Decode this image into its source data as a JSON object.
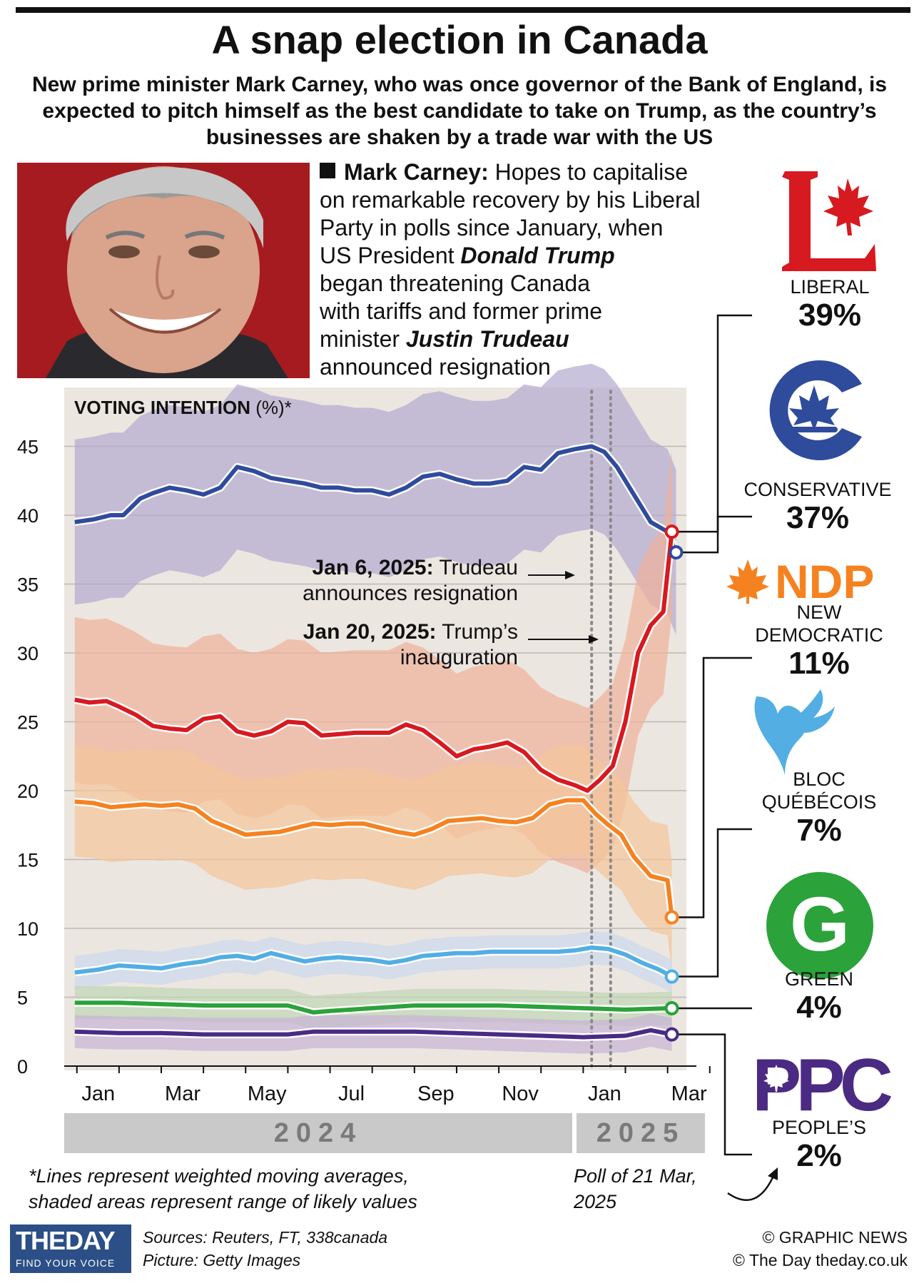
{
  "header": {
    "title": "A snap election in Canada",
    "subtitle": "New prime minister Mark Carney, who was once governor of the Bank of England, is expected to pitch himself as the best candidate to take on Trump, as the country’s businesses are shaken by a trade war with the US"
  },
  "description": {
    "name": "Mark Carney:",
    "line1_rest": " Hopes to capitalise",
    "line2": "on remarkable recovery by his Liberal",
    "line3": "Party in polls since January, when",
    "line4_pre": "US President ",
    "line4_em": "Donald Trump",
    "line5": "began threatening Canada",
    "line6": "with tariffs and former prime",
    "line7_pre": "minister ",
    "line7_em": "Justin Trudeau",
    "line8": "announced resignation"
  },
  "annotations": {
    "trudeau_date": "Jan 6, 2025:",
    "trudeau_text1": " Trudeau",
    "trudeau_text2": "announces resignation",
    "trump_date": "Jan 20, 2025:",
    "trump_text1": " Trump’s",
    "trump_text2": "inauguration"
  },
  "years": [
    "2024",
    "2025"
  ],
  "footnote": {
    "line1": "*Lines represent weighted moving averages,",
    "line2": "shaded areas represent range of likely values"
  },
  "poll_note": {
    "line1": "Poll of 21 Mar,",
    "line2": "2025"
  },
  "parties": [
    {
      "key": "liberal",
      "name_lines": [
        "LIBERAL"
      ],
      "pct": "39%",
      "color": "#d71920"
    },
    {
      "key": "conservative",
      "name_lines": [
        "CONSERVATIVE"
      ],
      "pct": "37%",
      "color": "#2f4b9c"
    },
    {
      "key": "ndp",
      "logo_text": "NDP",
      "name_lines": [
        "NEW",
        "DEMOCRATIC"
      ],
      "pct": "11%",
      "color": "#f58220"
    },
    {
      "key": "bloc",
      "name_lines": [
        "BLOC",
        "QUÉBÉCOIS"
      ],
      "pct": "7%",
      "color": "#52aee3"
    },
    {
      "key": "green",
      "logo_text": "G",
      "name_lines": [
        "GREEN"
      ],
      "pct": "4%",
      "color": "#2ba23a"
    },
    {
      "key": "ppc",
      "logo_text": "PPC",
      "name_lines": [
        "PEOPLE’S"
      ],
      "pct": "2%",
      "color": "#4b2a83"
    }
  ],
  "footer": {
    "brand_text": "THEDAY",
    "brand_tag": "FIND YOUR VOICE",
    "sources": "Sources: Reuters, FT, 338canada",
    "picture": "Picture: Getty Images",
    "copyright1": "© GRAPHIC NEWS",
    "copyright2": "© The Day   theday.co.uk"
  },
  "chart_data": {
    "type": "line",
    "title": "VOTING INTENTION",
    "title_suffix": " (%)*",
    "x_unit": "months since Jan 2024",
    "x_ticks": [
      "Jan",
      "Mar",
      "May",
      "Jul",
      "Sep",
      "Nov",
      "Jan",
      "Mar"
    ],
    "x_tick_values": [
      0,
      2,
      4,
      6,
      8,
      10,
      12,
      14
    ],
    "xlim": [
      -0.3,
      14.75
    ],
    "y_ticks": [
      0,
      5,
      10,
      15,
      20,
      25,
      30,
      35,
      40,
      45
    ],
    "ylim": [
      0,
      49
    ],
    "events": [
      {
        "label": "Jan 6, 2025",
        "x": 12.2
      },
      {
        "label": "Jan 20, 2025",
        "x": 12.65
      }
    ],
    "series": [
      {
        "key": "conservative",
        "color": "#2f4b9c",
        "band_color": "#b3a9cf",
        "band_width": 6,
        "x": [
          -0.05,
          0.4,
          0.8,
          1.1,
          1.5,
          1.8,
          2.2,
          2.6,
          3.0,
          3.4,
          3.8,
          4.2,
          4.6,
          5.0,
          5.4,
          5.8,
          6.2,
          6.6,
          7.0,
          7.4,
          7.8,
          8.2,
          8.6,
          9.0,
          9.4,
          9.8,
          10.2,
          10.6,
          11.0,
          11.4,
          11.8,
          12.2,
          12.5,
          12.8,
          13.2,
          13.6,
          14.0,
          14.2
        ],
        "y": [
          39.5,
          39.7,
          40.0,
          40.0,
          41.2,
          41.6,
          42.0,
          41.8,
          41.5,
          42.0,
          43.5,
          43.2,
          42.7,
          42.5,
          42.3,
          42.0,
          42.0,
          41.8,
          41.8,
          41.5,
          42.0,
          42.8,
          43.0,
          42.6,
          42.3,
          42.3,
          42.5,
          43.5,
          43.3,
          44.5,
          44.8,
          45.0,
          44.6,
          43.5,
          41.5,
          39.5,
          38.8,
          37.3
        ]
      },
      {
        "key": "liberal",
        "color": "#d71920",
        "band_color": "#f0b09a",
        "band_width": 6,
        "x": [
          -0.05,
          0.3,
          0.7,
          1.0,
          1.4,
          1.8,
          2.2,
          2.6,
          3.0,
          3.4,
          3.8,
          4.2,
          4.6,
          5.0,
          5.4,
          5.8,
          6.2,
          6.6,
          7.0,
          7.4,
          7.8,
          8.2,
          8.6,
          9.0,
          9.4,
          9.8,
          10.2,
          10.6,
          11.0,
          11.4,
          11.8,
          12.1,
          12.4,
          12.7,
          13.0,
          13.3,
          13.6,
          13.9,
          14.1
        ],
        "y": [
          26.6,
          26.4,
          26.5,
          26.1,
          25.5,
          24.7,
          24.5,
          24.4,
          25.2,
          25.4,
          24.3,
          24.0,
          24.3,
          25.0,
          24.9,
          24.0,
          24.1,
          24.2,
          24.2,
          24.2,
          24.8,
          24.4,
          23.5,
          22.5,
          23.0,
          23.2,
          23.5,
          22.8,
          21.5,
          20.8,
          20.4,
          20.0,
          20.8,
          21.8,
          25.0,
          30.0,
          32.0,
          33.0,
          38.8
        ]
      },
      {
        "key": "ndp",
        "color": "#f58220",
        "band_color": "#f4c49a",
        "band_width": 4,
        "x": [
          -0.05,
          0.4,
          0.8,
          1.2,
          1.6,
          2.0,
          2.4,
          2.8,
          3.2,
          3.6,
          4.0,
          4.4,
          4.8,
          5.2,
          5.6,
          6.0,
          6.4,
          6.8,
          7.2,
          7.6,
          8.0,
          8.4,
          8.8,
          9.2,
          9.6,
          10.0,
          10.4,
          10.8,
          11.2,
          11.6,
          12.0,
          12.3,
          12.6,
          12.9,
          13.2,
          13.6,
          14.0,
          14.1
        ],
        "y": [
          19.2,
          19.1,
          18.8,
          18.9,
          19.0,
          18.9,
          19.0,
          18.7,
          17.8,
          17.3,
          16.8,
          16.9,
          17.0,
          17.3,
          17.6,
          17.5,
          17.6,
          17.6,
          17.3,
          17.0,
          16.8,
          17.2,
          17.8,
          17.9,
          18.0,
          17.8,
          17.7,
          18.0,
          19.0,
          19.3,
          19.3,
          18.3,
          17.5,
          16.8,
          15.2,
          13.8,
          13.5,
          10.8
        ]
      },
      {
        "key": "bloc",
        "color": "#52aee3",
        "band_color": "#cbd8ec",
        "band_width": 1.2,
        "x": [
          -0.05,
          0.5,
          1.0,
          1.5,
          2.0,
          2.5,
          3.0,
          3.4,
          3.8,
          4.2,
          4.6,
          5.0,
          5.4,
          5.8,
          6.2,
          6.6,
          7.0,
          7.4,
          7.8,
          8.2,
          8.6,
          9.0,
          9.4,
          9.8,
          10.2,
          10.6,
          11.0,
          11.4,
          11.8,
          12.2,
          12.6,
          13.0,
          13.4,
          13.8,
          14.1
        ],
        "y": [
          6.8,
          7.0,
          7.3,
          7.2,
          7.1,
          7.4,
          7.6,
          7.9,
          8.0,
          7.8,
          8.2,
          7.9,
          7.6,
          7.8,
          7.9,
          7.8,
          7.7,
          7.5,
          7.7,
          8.0,
          8.1,
          8.2,
          8.2,
          8.3,
          8.3,
          8.3,
          8.3,
          8.3,
          8.4,
          8.6,
          8.5,
          8.1,
          7.5,
          7.0,
          6.5
        ]
      },
      {
        "key": "green",
        "color": "#2ba23a",
        "band_color": "#bfd6b3",
        "band_width": 1.2,
        "x": [
          -0.05,
          1.0,
          2.0,
          3.0,
          4.0,
          5.0,
          5.6,
          6.0,
          7.0,
          8.0,
          9.0,
          10.0,
          11.0,
          12.0,
          13.0,
          14.1
        ],
        "y": [
          4.6,
          4.6,
          4.5,
          4.4,
          4.4,
          4.4,
          3.9,
          4.0,
          4.2,
          4.4,
          4.4,
          4.4,
          4.3,
          4.2,
          4.1,
          4.2
        ]
      },
      {
        "key": "ppc",
        "color": "#4b2a83",
        "band_color": "#c7b3d6",
        "band_width": 1.2,
        "x": [
          -0.05,
          1.0,
          2.0,
          3.0,
          4.0,
          5.0,
          5.6,
          6.0,
          7.0,
          8.0,
          9.0,
          10.0,
          11.0,
          12.0,
          13.0,
          13.6,
          14.1
        ],
        "y": [
          2.5,
          2.4,
          2.4,
          2.3,
          2.3,
          2.3,
          2.5,
          2.5,
          2.5,
          2.5,
          2.4,
          2.3,
          2.2,
          2.1,
          2.2,
          2.6,
          2.3
        ]
      }
    ]
  }
}
